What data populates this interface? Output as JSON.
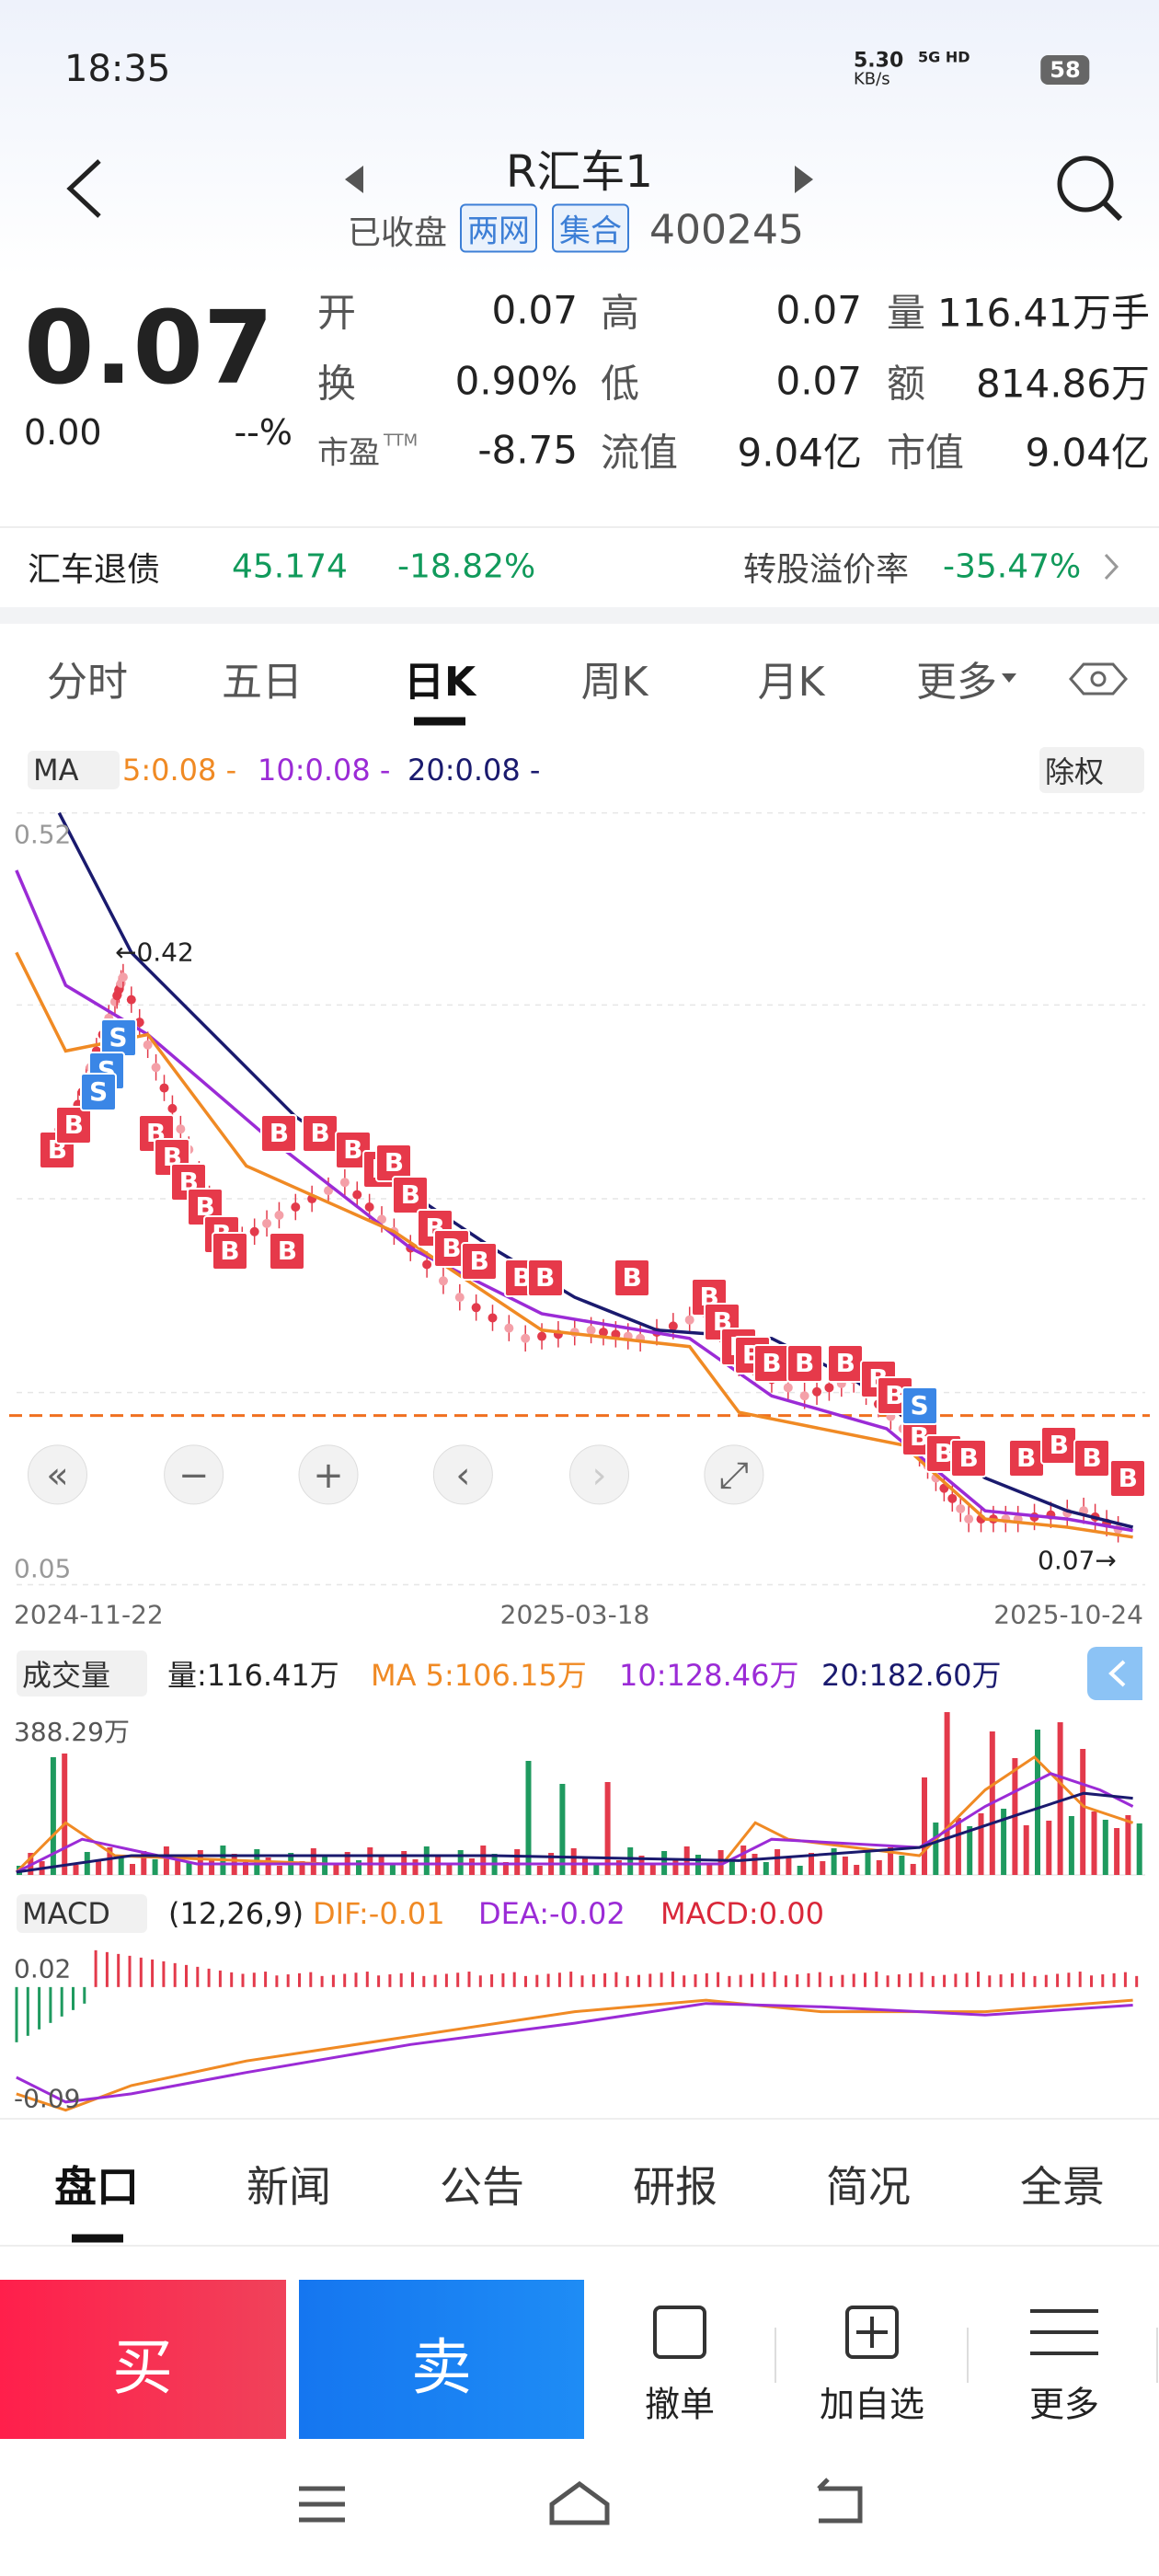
{
  "status_bar": {
    "time": "18:35",
    "net_speed": "5.30",
    "speed_unit": "KB/s",
    "network": "5G HD",
    "battery": "58"
  },
  "header": {
    "title": "R汇车1",
    "status": "已收盘",
    "tags": [
      "两网",
      "集合"
    ],
    "code": "400245"
  },
  "quote": {
    "price": "0.07",
    "change": "0.00",
    "change_pct": "--%",
    "fields": [
      {
        "label": "开",
        "value": "0.07"
      },
      {
        "label": "高",
        "value": "0.07"
      },
      {
        "label": "量",
        "value": "116.41万手"
      },
      {
        "label": "换",
        "value": "0.90%"
      },
      {
        "label": "低",
        "value": "0.07"
      },
      {
        "label": "额",
        "value": "814.86万"
      },
      {
        "label": "市盈",
        "sup": "TTM",
        "value": "-8.75"
      },
      {
        "label": "流值",
        "value": "9.04亿"
      },
      {
        "label": "市值",
        "value": "9.04亿"
      }
    ]
  },
  "bond": {
    "name": "汇车退债",
    "price": "45.174",
    "change": "-18.82%",
    "premium_label": "转股溢价率",
    "premium": "-35.47%"
  },
  "tabs": [
    "分时",
    "五日",
    "日K",
    "周K",
    "月K",
    "更多"
  ],
  "kline": {
    "indicator": "MA",
    "ma": [
      "5:0.08 -",
      "10:0.08 -",
      "20:0.08 -"
    ],
    "adjust": "除权",
    "y_top": "0.52",
    "y_bottom": "0.05",
    "dates": [
      "2024-11-22",
      "2025-03-18",
      "2025-10-24"
    ],
    "high_note": "←0.42",
    "last_note": "0.07→",
    "buy": "B",
    "sell": "S"
  },
  "volume": {
    "label": "成交量",
    "current": "量:116.41万",
    "ma": [
      "MA 5:106.15万",
      "10:128.46万",
      "20:182.60万"
    ],
    "max": "388.29万"
  },
  "macd": {
    "label": "MACD",
    "params": "(12,26,9)",
    "dif": "DIF:-0.01",
    "dea": "DEA:-0.02",
    "macd": "MACD:0.00",
    "y_top": "0.02",
    "y_bottom": "-0.09"
  },
  "bottom_tabs": [
    "盘口",
    "新闻",
    "公告",
    "研报",
    "简况",
    "全景"
  ],
  "actions": {
    "buy": "买",
    "sell": "卖",
    "items": [
      "撤单",
      "加自选",
      "更多"
    ]
  }
}
